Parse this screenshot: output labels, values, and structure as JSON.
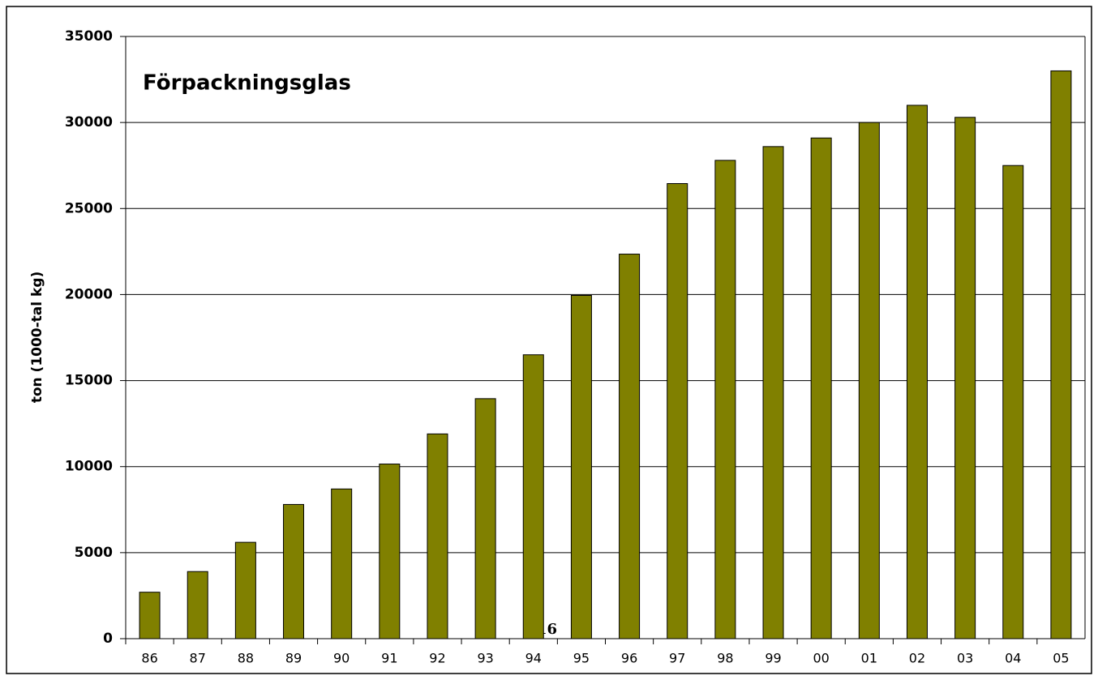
{
  "chart_data": {
    "type": "bar",
    "title": "Förpackningsglas",
    "y_label": "ton (1000-tal kg)",
    "categories": [
      "86",
      "87",
      "88",
      "89",
      "90",
      "91",
      "92",
      "93",
      "94",
      "95",
      "96",
      "97",
      "98",
      "99",
      "00",
      "01",
      "02",
      "03",
      "04",
      "05"
    ],
    "values": [
      2700,
      3900,
      5600,
      7800,
      8700,
      10150,
      11900,
      13950,
      16500,
      19950,
      22350,
      26450,
      27800,
      28600,
      29100,
      30000,
      31000,
      30300,
      27500,
      33000
    ],
    "color": "#808000",
    "ylim": [
      0,
      35000
    ],
    "yticks": [
      0,
      5000,
      10000,
      15000,
      20000,
      25000,
      30000,
      35000
    ],
    "grid": true,
    "annotations": [
      "16"
    ]
  }
}
